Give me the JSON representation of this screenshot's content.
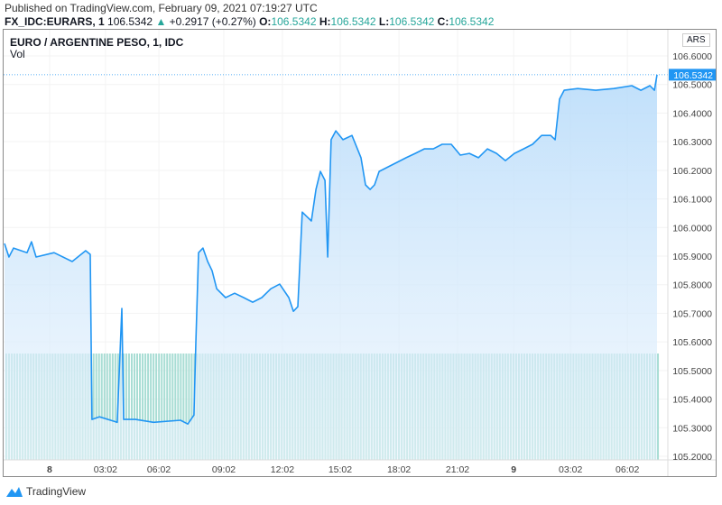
{
  "header": {
    "published": "Published on TradingView.com, February 09, 2021 07:19:27 UTC",
    "symbol": "FX_IDC:EURARS, 1",
    "last": "106.5342",
    "change": "+0.2917 (+0.27%)",
    "o_label": "O:",
    "o": "106.5342",
    "h_label": "H:",
    "h": "106.5342",
    "l_label": "L:",
    "l": "106.5342",
    "c_label": "C:",
    "c": "106.5342"
  },
  "legend": {
    "title": "EURO / ARGENTINE PESO, 1, IDC",
    "vol": "Vol"
  },
  "currency": "ARS",
  "footer": {
    "brand": "TradingView"
  },
  "colors": {
    "line": "#2196f3",
    "fill": "#cfe6fb",
    "volume": "#a8ddd4",
    "up": "#26a69a",
    "price_tag": "#2196f3"
  },
  "chart_data": {
    "type": "area",
    "title": "EURO / ARGENTINE PESO, 1, IDC",
    "x_unit": "hours since Feb 8 00:00",
    "xlim": [
      -2.34,
      32.08
    ],
    "ylim": [
      105.15,
      106.68
    ],
    "y_ticks": [
      "106.6000",
      "106.5000",
      "106.4000",
      "106.3000",
      "106.2000",
      "106.1000",
      "106.0000",
      "105.9000",
      "105.8000",
      "105.7000",
      "105.6000",
      "105.5000",
      "105.4000",
      "105.3000",
      "105.2000"
    ],
    "x_ticks": [
      {
        "h": 0,
        "label": "8"
      },
      {
        "h": 2.9,
        "label": "03:02"
      },
      {
        "h": 5.67,
        "label": "06:02"
      },
      {
        "h": 9.04,
        "label": "09:02"
      },
      {
        "h": 12.08,
        "label": "12:02"
      },
      {
        "h": 15.08,
        "label": "15:02"
      },
      {
        "h": 18.13,
        "label": "18:02"
      },
      {
        "h": 21.17,
        "label": "21:02"
      },
      {
        "h": 24.08,
        "label": "9"
      },
      {
        "h": 27.03,
        "label": "03:02"
      },
      {
        "h": 29.98,
        "label": "06:02"
      }
    ],
    "last_price_label": "106.5342",
    "last_price": 106.5342,
    "series": [
      {
        "name": "EURARS",
        "points": [
          [
            -2.34,
            105.944
          ],
          [
            -2.11,
            105.897
          ],
          [
            -1.87,
            105.928
          ],
          [
            -1.17,
            105.912
          ],
          [
            -0.94,
            105.95
          ],
          [
            -0.7,
            105.897
          ],
          [
            0.23,
            105.912
          ],
          [
            1.17,
            105.881
          ],
          [
            1.87,
            105.919
          ],
          [
            2.11,
            105.906
          ],
          [
            2.2,
            105.329
          ],
          [
            2.58,
            105.338
          ],
          [
            3.51,
            105.319
          ],
          [
            3.75,
            105.717
          ],
          [
            3.84,
            105.329
          ],
          [
            4.45,
            105.329
          ],
          [
            5.39,
            105.319
          ],
          [
            6.79,
            105.326
          ],
          [
            7.17,
            105.313
          ],
          [
            7.49,
            105.344
          ],
          [
            7.59,
            105.597
          ],
          [
            7.73,
            105.912
          ],
          [
            7.96,
            105.928
          ],
          [
            8.2,
            105.881
          ],
          [
            8.43,
            105.849
          ],
          [
            8.67,
            105.786
          ],
          [
            9.13,
            105.755
          ],
          [
            9.6,
            105.77
          ],
          [
            10.07,
            105.755
          ],
          [
            10.54,
            105.739
          ],
          [
            11.01,
            105.755
          ],
          [
            11.48,
            105.786
          ],
          [
            11.94,
            105.802
          ],
          [
            12.41,
            105.755
          ],
          [
            12.65,
            105.707
          ],
          [
            12.88,
            105.723
          ],
          [
            13.11,
            106.054
          ],
          [
            13.35,
            106.038
          ],
          [
            13.58,
            106.023
          ],
          [
            13.82,
            106.133
          ],
          [
            14.05,
            106.196
          ],
          [
            14.29,
            106.165
          ],
          [
            14.43,
            105.897
          ],
          [
            14.61,
            106.307
          ],
          [
            14.85,
            106.338
          ],
          [
            15.22,
            106.307
          ],
          [
            15.69,
            106.322
          ],
          [
            16.16,
            106.244
          ],
          [
            16.39,
            106.149
          ],
          [
            16.63,
            106.133
          ],
          [
            16.86,
            106.149
          ],
          [
            17.1,
            106.196
          ],
          [
            17.56,
            106.212
          ],
          [
            18.03,
            106.228
          ],
          [
            18.5,
            106.244
          ],
          [
            18.97,
            106.259
          ],
          [
            19.44,
            106.275
          ],
          [
            19.91,
            106.275
          ],
          [
            20.37,
            106.291
          ],
          [
            20.84,
            106.291
          ],
          [
            21.31,
            106.253
          ],
          [
            21.78,
            106.259
          ],
          [
            22.25,
            106.244
          ],
          [
            22.72,
            106.275
          ],
          [
            23.19,
            106.259
          ],
          [
            23.65,
            106.234
          ],
          [
            24.12,
            106.259
          ],
          [
            24.59,
            106.275
          ],
          [
            25.06,
            106.291
          ],
          [
            25.53,
            106.322
          ],
          [
            26.0,
            106.322
          ],
          [
            26.23,
            106.307
          ],
          [
            26.46,
            106.449
          ],
          [
            26.7,
            106.48
          ],
          [
            27.4,
            106.486
          ],
          [
            28.34,
            106.48
          ],
          [
            29.27,
            106.486
          ],
          [
            30.21,
            106.496
          ],
          [
            30.68,
            106.48
          ],
          [
            31.15,
            106.496
          ],
          [
            31.38,
            106.48
          ],
          [
            31.52,
            106.534
          ]
        ]
      }
    ],
    "volume": {
      "name": "Vol",
      "bar_count": 240,
      "relative_height": 1.0
    }
  }
}
